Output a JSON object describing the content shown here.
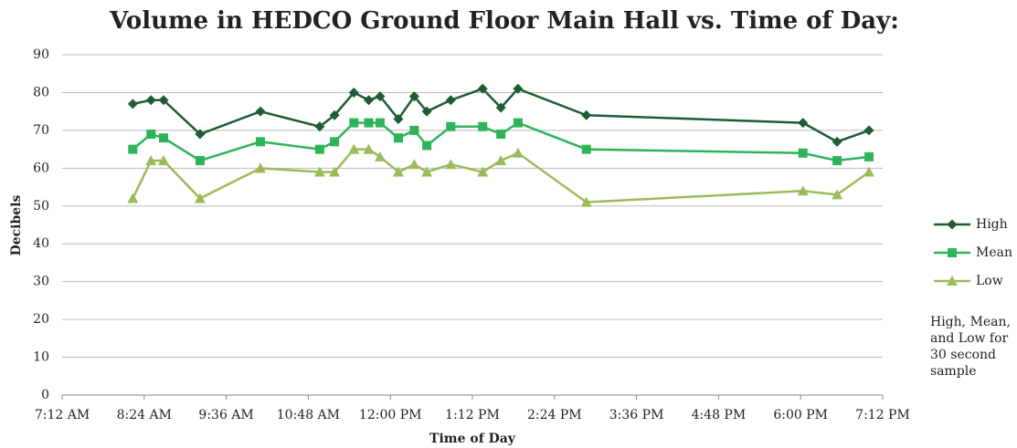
{
  "chart_data": {
    "type": "line",
    "title": "Volume in HEDCO Ground Floor Main Hall vs. Time of Day:",
    "x_label": "Time of Day",
    "y_label": "Decibels",
    "annotation": "High, Mean, and Low for 30 second sample",
    "x": [
      494,
      510,
      521,
      553,
      606,
      658,
      671,
      688,
      701,
      711,
      727,
      741,
      752,
      773,
      801,
      817,
      832,
      892,
      1082,
      1112,
      1140
    ],
    "series": [
      {
        "name": "High",
        "color": "#1e5c34",
        "marker": "diamond",
        "values": [
          77,
          78,
          78,
          69,
          75,
          71,
          74,
          80,
          78,
          79,
          73,
          79,
          75,
          78,
          81,
          76,
          81,
          74,
          72,
          67,
          70
        ]
      },
      {
        "name": "Mean",
        "color": "#2eb35a",
        "marker": "square",
        "values": [
          65,
          69,
          68,
          62,
          67,
          65,
          67,
          72,
          72,
          72,
          68,
          70,
          66,
          71,
          71,
          69,
          72,
          65,
          64,
          62,
          63
        ]
      },
      {
        "name": "Low",
        "color": "#9bbb59",
        "marker": "triangle",
        "values": [
          52,
          62,
          62,
          52,
          60,
          59,
          59,
          65,
          65,
          63,
          59,
          61,
          59,
          61,
          59,
          62,
          64,
          51,
          54,
          53,
          59
        ]
      }
    ],
    "xlim": [
      432,
      1152
    ],
    "xticks": [
      {
        "value": 432,
        "label": "7:12 AM"
      },
      {
        "value": 504,
        "label": "8:24 AM"
      },
      {
        "value": 576,
        "label": "9:36 AM"
      },
      {
        "value": 648,
        "label": "10:48 AM"
      },
      {
        "value": 720,
        "label": "12:00 PM"
      },
      {
        "value": 792,
        "label": "1:12 PM"
      },
      {
        "value": 864,
        "label": "2:24 PM"
      },
      {
        "value": 936,
        "label": "3:36 PM"
      },
      {
        "value": 1008,
        "label": "4:48 PM"
      },
      {
        "value": 1080,
        "label": "6:00 PM"
      },
      {
        "value": 1152,
        "label": "7:12 PM"
      }
    ],
    "ylim": [
      0,
      90
    ],
    "yticks": [
      0,
      10,
      20,
      30,
      40,
      50,
      60,
      70,
      80,
      90
    ],
    "grid": true,
    "legend": "right"
  }
}
